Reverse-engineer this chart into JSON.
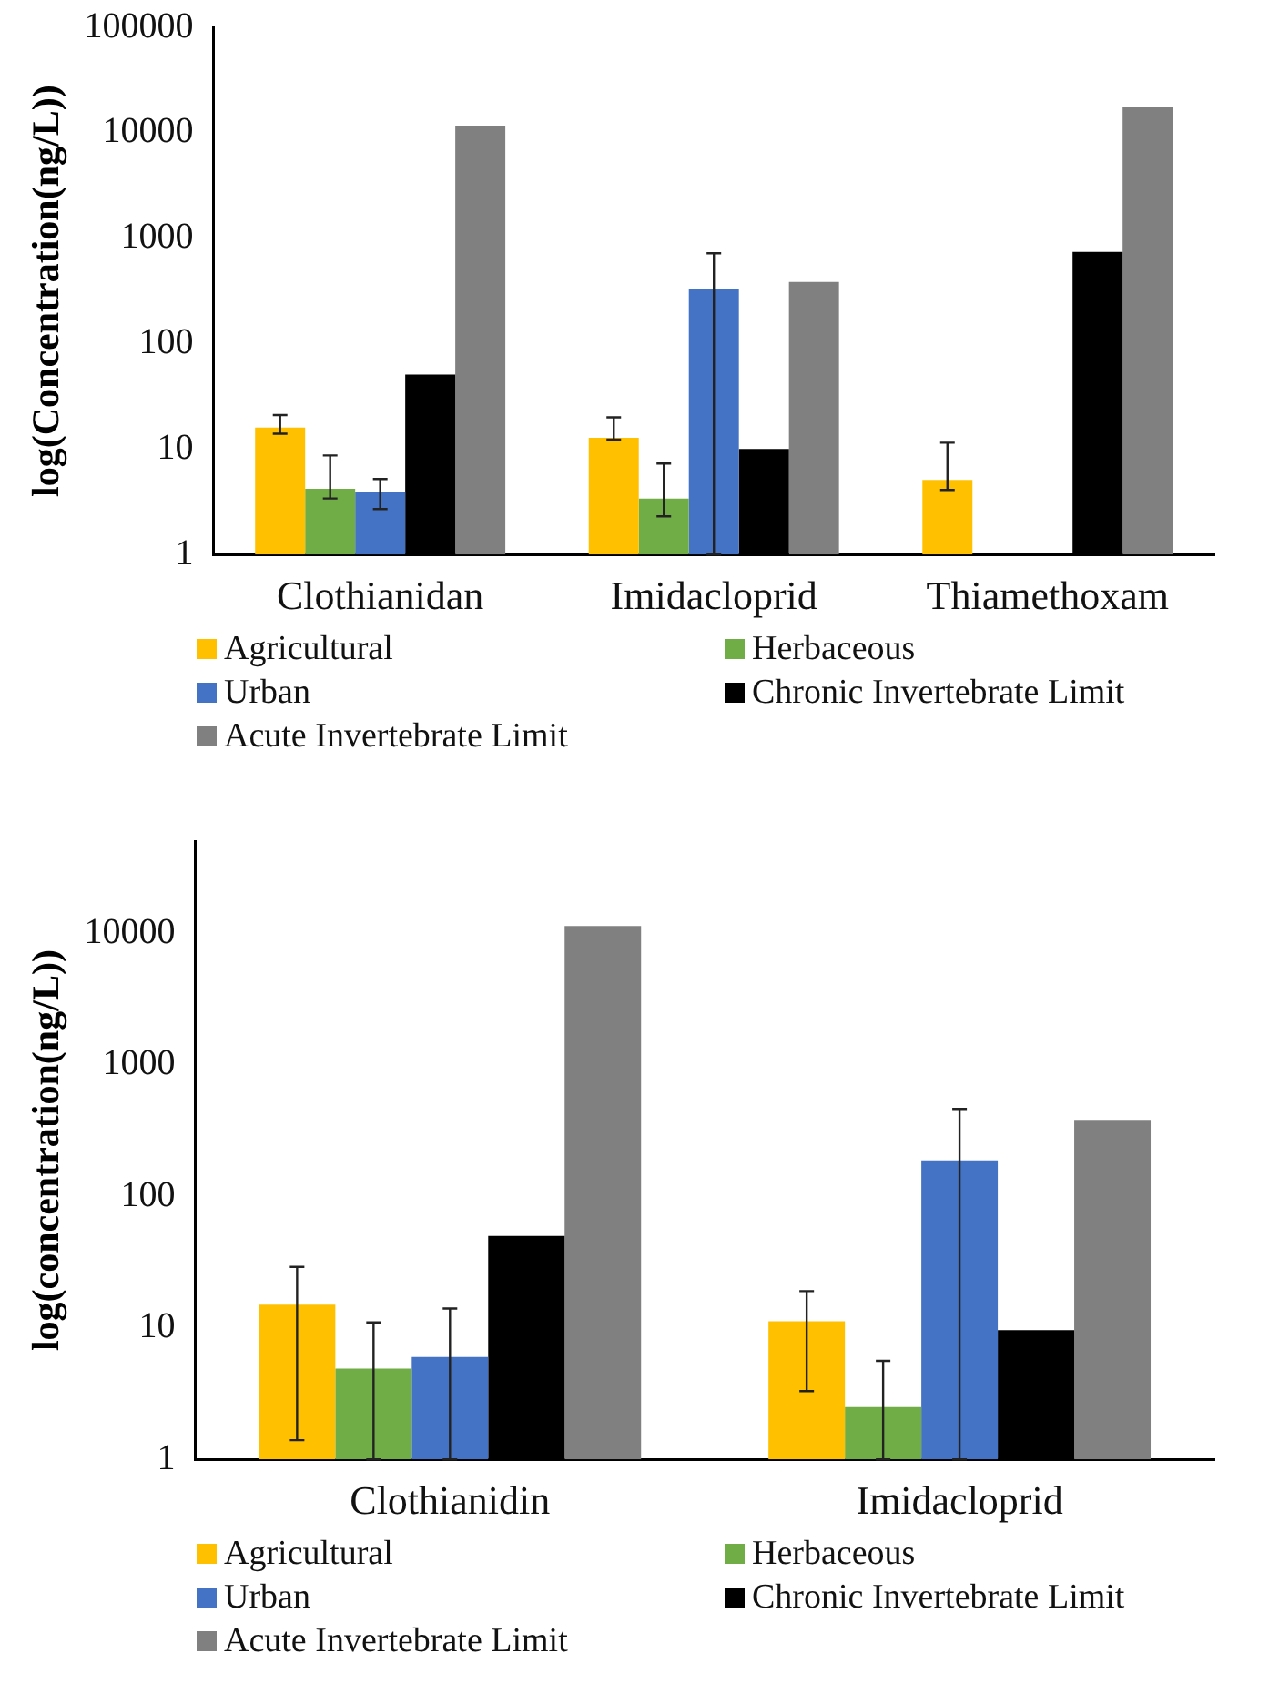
{
  "chart_data": [
    {
      "type": "bar",
      "ylabel": "log(Concentration(ng/L))",
      "categories": [
        "Clothianidan",
        "Imidacloprid",
        "Thiamethoxam"
      ],
      "log": "y",
      "ylim": [
        1,
        100000
      ],
      "yticks": [
        1,
        10,
        100,
        1000,
        10000,
        100000
      ],
      "legend": "bottom",
      "series": [
        {
          "name": "Agricultural",
          "color": "#ffc000",
          "values": [
            16,
            12.8,
            5.1
          ],
          "errors": [
            [
              14,
              21
            ],
            [
              12.3,
              20
            ],
            [
              4.1,
              11.5
            ]
          ]
        },
        {
          "name": "Herbaceous",
          "color": "#70ad47",
          "values": [
            4.2,
            3.4,
            null
          ],
          "errors": [
            [
              3.4,
              8.7
            ],
            [
              2.3,
              7.3
            ],
            null
          ]
        },
        {
          "name": "Urban",
          "color": "#4472c4",
          "values": [
            3.9,
            330,
            null
          ],
          "errors": [
            [
              2.7,
              5.2
            ],
            [
              1,
              720
            ],
            null
          ]
        },
        {
          "name": "Chronic Invertebrate Limit",
          "color": "#000000",
          "values": [
            51,
            10,
            740
          ]
        },
        {
          "name": "Acute Invertebrate Limit",
          "color": "#808080",
          "values": [
            11700,
            385,
            17700
          ]
        }
      ]
    },
    {
      "type": "bar",
      "ylabel": "log(concentration(ng/L))",
      "categories": [
        "Clothianidin",
        "Imidacloprid"
      ],
      "log": "y",
      "ylim": [
        1,
        50000
      ],
      "yticks": [
        1,
        10,
        100,
        1000,
        10000
      ],
      "legend": "bottom",
      "series": [
        {
          "name": "Agricultural",
          "color": "#ffc000",
          "values": [
            15,
            11.2
          ],
          "errors": [
            [
              1.4,
              29
            ],
            [
              3.3,
              19
            ]
          ]
        },
        {
          "name": "Herbaceous",
          "color": "#70ad47",
          "values": [
            4.9,
            2.5
          ],
          "errors": [
            [
              1,
              11
            ],
            [
              1,
              5.6
            ]
          ]
        },
        {
          "name": "Urban",
          "color": "#4472c4",
          "values": [
            6,
            187
          ],
          "errors": [
            [
              1,
              14
            ],
            [
              1,
              460
            ]
          ]
        },
        {
          "name": "Chronic Invertebrate Limit",
          "color": "#000000",
          "values": [
            50,
            9.6
          ]
        },
        {
          "name": "Acute Invertebrate Limit",
          "color": "#808080",
          "values": [
            11300,
            380
          ]
        }
      ]
    }
  ]
}
